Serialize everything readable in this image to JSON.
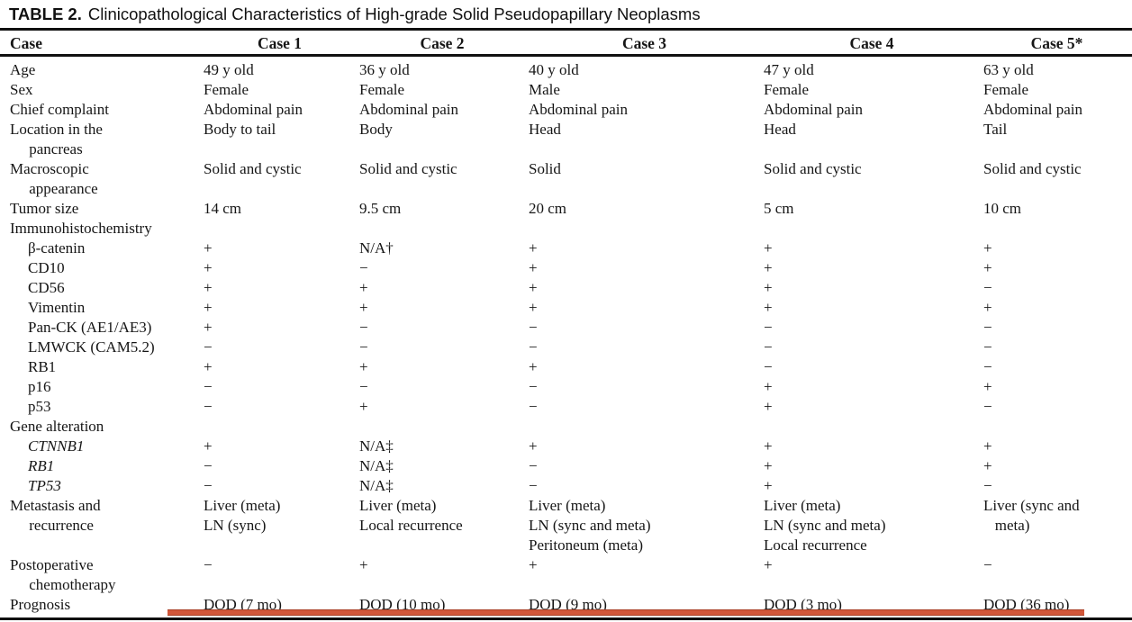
{
  "title": {
    "label": "TABLE 2.",
    "text": "Clinicopathological Characteristics of High-grade Solid Pseudopapillary Neoplasms"
  },
  "table": {
    "columns": [
      "Case",
      "Case 1",
      "Case 2",
      "Case 3",
      "Case 4",
      "Case 5*"
    ],
    "rows": [
      {
        "label": "Age",
        "indent": false,
        "italic": false,
        "values": [
          "49 y old",
          "36 y old",
          "40 y old",
          "47 y old",
          "63 y old"
        ]
      },
      {
        "label": "Sex",
        "indent": false,
        "italic": false,
        "values": [
          "Female",
          "Female",
          "Male",
          "Female",
          "Female"
        ]
      },
      {
        "label": "Chief complaint",
        "indent": false,
        "italic": false,
        "values": [
          "Abdominal pain",
          "Abdominal pain",
          "Abdominal pain",
          "Abdominal pain",
          "Abdominal pain"
        ]
      },
      {
        "label": "Location in the\n     pancreas",
        "indent": false,
        "italic": false,
        "values": [
          "Body to tail",
          "Body",
          "Head",
          "Head",
          "Tail"
        ]
      },
      {
        "label": "Macroscopic\n     appearance",
        "indent": false,
        "italic": false,
        "values": [
          "Solid and cystic",
          "Solid and cystic",
          "Solid",
          "Solid and cystic",
          "Solid and cystic"
        ]
      },
      {
        "label": "Tumor size",
        "indent": false,
        "italic": false,
        "values": [
          "14 cm",
          "9.5 cm",
          "20 cm",
          "5 cm",
          "10 cm"
        ]
      },
      {
        "label": "Immunohistochemistry",
        "indent": false,
        "italic": false,
        "values": [
          "",
          "",
          "",
          "",
          ""
        ]
      },
      {
        "label": "β-catenin",
        "indent": true,
        "italic": false,
        "values": [
          "+",
          "N/A†",
          "+",
          "+",
          "+"
        ]
      },
      {
        "label": "CD10",
        "indent": true,
        "italic": false,
        "values": [
          "+",
          "−",
          "+",
          "+",
          "+"
        ]
      },
      {
        "label": "CD56",
        "indent": true,
        "italic": false,
        "values": [
          "+",
          "+",
          "+",
          "+",
          "−"
        ]
      },
      {
        "label": "Vimentin",
        "indent": true,
        "italic": false,
        "values": [
          "+",
          "+",
          "+",
          "+",
          "+"
        ]
      },
      {
        "label": "Pan-CK (AE1/AE3)",
        "indent": true,
        "italic": false,
        "values": [
          "+",
          "−",
          "−",
          "−",
          "−"
        ]
      },
      {
        "label": "LMWCK (CAM5.2)",
        "indent": true,
        "italic": false,
        "values": [
          "−",
          "−",
          "−",
          "−",
          "−"
        ]
      },
      {
        "label": "RB1",
        "indent": true,
        "italic": false,
        "values": [
          "+",
          "+",
          "+",
          "−",
          "−"
        ]
      },
      {
        "label": "p16",
        "indent": true,
        "italic": false,
        "values": [
          "−",
          "−",
          "−",
          "+",
          "+"
        ]
      },
      {
        "label": "p53",
        "indent": true,
        "italic": false,
        "values": [
          "−",
          "+",
          "−",
          "+",
          "−"
        ]
      },
      {
        "label": "Gene alteration",
        "indent": false,
        "italic": false,
        "values": [
          "",
          "",
          "",
          "",
          ""
        ]
      },
      {
        "label": "CTNNB1",
        "indent": true,
        "italic": true,
        "values": [
          "+",
          "N/A‡",
          "+",
          "+",
          "+"
        ]
      },
      {
        "label": "RB1",
        "indent": true,
        "italic": true,
        "values": [
          "−",
          "N/A‡",
          "−",
          "+",
          "+"
        ]
      },
      {
        "label": "TP53",
        "indent": true,
        "italic": true,
        "values": [
          "−",
          "N/A‡",
          "−",
          "+",
          "−"
        ]
      },
      {
        "label": "Metastasis and\n     recurrence",
        "indent": false,
        "italic": false,
        "values": [
          "Liver (meta)\nLN (sync)",
          "Liver (meta)\nLocal recurrence",
          "Liver (meta)\nLN (sync and meta)\nPeritoneum (meta)",
          "Liver (meta)\nLN (sync and meta)\nLocal recurrence",
          "Liver (sync and\n   meta)"
        ]
      },
      {
        "label": "Postoperative\n     chemotherapy",
        "indent": false,
        "italic": false,
        "values": [
          "−",
          "+",
          "+",
          "+",
          "−"
        ]
      },
      {
        "label": "Prognosis",
        "indent": false,
        "italic": false,
        "values": [
          "DOD (7 mo)",
          "DOD (10 mo)",
          "DOD (9 mo)",
          "DOD (3 mo)",
          "DOD (36 mo)"
        ]
      }
    ]
  },
  "annotation": {
    "underline_color": "#d2573a"
  }
}
